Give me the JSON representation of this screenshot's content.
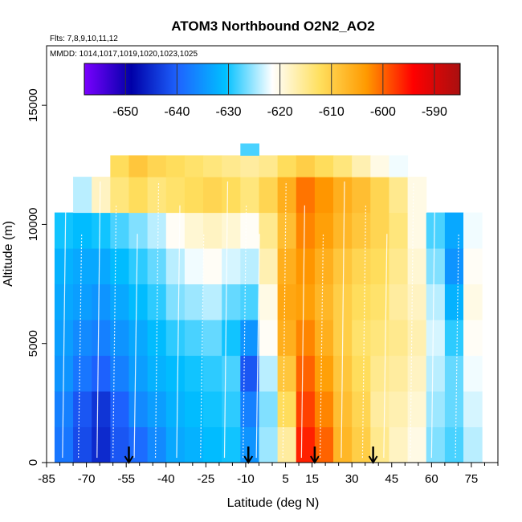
{
  "chart_data": {
    "type": "heatmap",
    "title": "ATOM3 Northbound O2N2_AO2",
    "flights_note": "Flts: 7,8,9,10,11,12",
    "dates_note": "MMDD: 1014,1017,1019,1020,1023,1025",
    "xlabel": "Latitude (deg N)",
    "ylabel": "Altitude (m)",
    "xlim": [
      -85,
      85
    ],
    "ylim": [
      0,
      17500
    ],
    "x_ticks": [
      -85,
      -70,
      -55,
      -40,
      -25,
      -10,
      5,
      15,
      30,
      45,
      60,
      75
    ],
    "y_ticks": [
      0,
      5000,
      10000,
      15000
    ],
    "colorbar": {
      "range": [
        -658,
        -585
      ],
      "ticks": [
        -650,
        -640,
        -630,
        -620,
        -610,
        -600,
        -590
      ],
      "colors": [
        "#7a00ff",
        "#0000a8",
        "#1e64ff",
        "#00c0ff",
        "#ffffff",
        "#ffe060",
        "#ff9a00",
        "#ff0000",
        "#a81010"
      ]
    },
    "grid": false,
    "flight_markers": [
      -54,
      -9,
      16,
      38
    ],
    "field": {
      "lat_edges": [
        -82,
        -75,
        -68,
        -61,
        -54,
        -47,
        -40,
        -33,
        -26,
        -19,
        -12,
        -5,
        2,
        9,
        16,
        23,
        30,
        37,
        44,
        51,
        58,
        65,
        72,
        79
      ],
      "alt_rows": [
        {
          "alt": [
            0,
            1500
          ],
          "vals": [
            -638,
            -642,
            -645,
            -641,
            -639,
            -636,
            -633,
            -632,
            -631,
            -630,
            -635,
            -625,
            -616,
            -596,
            -600,
            -607,
            -610,
            -615,
            -618,
            -620,
            -626,
            -628,
            -624
          ]
        },
        {
          "alt": [
            1500,
            3000
          ],
          "vals": [
            -637,
            -641,
            -644,
            -640,
            -636,
            -634,
            -632,
            -631,
            -630,
            -629,
            -637,
            -626,
            -612,
            -598,
            -602,
            -608,
            -611,
            -616,
            -617,
            -619,
            -625,
            -627,
            -623
          ]
        },
        {
          "alt": [
            3000,
            4500
          ],
          "vals": [
            -635,
            -638,
            -640,
            -637,
            -634,
            -632,
            -631,
            -630,
            -629,
            -628,
            -641,
            -624,
            -609,
            -600,
            -604,
            -609,
            -612,
            -615,
            -616,
            -618,
            -624,
            -627,
            -622
          ]
        },
        {
          "alt": [
            4500,
            6000
          ],
          "vals": [
            -634,
            -636,
            -637,
            -635,
            -633,
            -631,
            -629,
            -628,
            -627,
            -630,
            -635,
            -621,
            -606,
            -602,
            -606,
            -610,
            -613,
            -614,
            -615,
            -617,
            -623,
            -629,
            -621
          ]
        },
        {
          "alt": [
            6000,
            7500
          ],
          "vals": [
            -633,
            -634,
            -635,
            -633,
            -631,
            -629,
            -626,
            -625,
            -624,
            -627,
            -628,
            -620,
            -605,
            -604,
            -607,
            -610,
            -612,
            -613,
            -616,
            -618,
            -624,
            -632,
            -620
          ]
        },
        {
          "alt": [
            7500,
            9000
          ],
          "vals": [
            -632,
            -633,
            -633,
            -631,
            -629,
            -627,
            -624,
            -622,
            -621,
            -623,
            -624,
            -617,
            -606,
            -603,
            -606,
            -609,
            -611,
            -612,
            -615,
            -619,
            -626,
            -635,
            -621
          ]
        },
        {
          "alt": [
            9000,
            10500
          ],
          "vals": [
            -630,
            -631,
            -630,
            -628,
            -626,
            -624,
            -621,
            -619,
            -618,
            -619,
            -621,
            -615,
            -608,
            -602,
            -604,
            -607,
            -609,
            -611,
            -614,
            -620,
            -628,
            -633,
            -622
          ]
        },
        {
          "alt": [
            10500,
            12000
          ],
          "vals": [
            null,
            -624,
            -618,
            -614,
            -612,
            -614,
            -613,
            -612,
            -611,
            -612,
            -614,
            -611,
            -606,
            -601,
            -603,
            -606,
            -608,
            -611,
            -615,
            -620,
            null,
            null,
            null
          ]
        },
        {
          "alt": [
            12000,
            12900
          ],
          "vals": [
            null,
            null,
            null,
            -612,
            -609,
            -611,
            -612,
            -613,
            -614,
            -615,
            -616,
            -615,
            -612,
            -610,
            -612,
            -614,
            -617,
            -620,
            -622,
            null,
            null,
            null,
            null
          ]
        },
        {
          "alt": [
            12900,
            13400
          ],
          "vals": [
            null,
            null,
            null,
            null,
            null,
            null,
            null,
            null,
            null,
            null,
            -628,
            null,
            null,
            null,
            null,
            null,
            null,
            null,
            null,
            null,
            null,
            null,
            null
          ]
        }
      ]
    }
  }
}
